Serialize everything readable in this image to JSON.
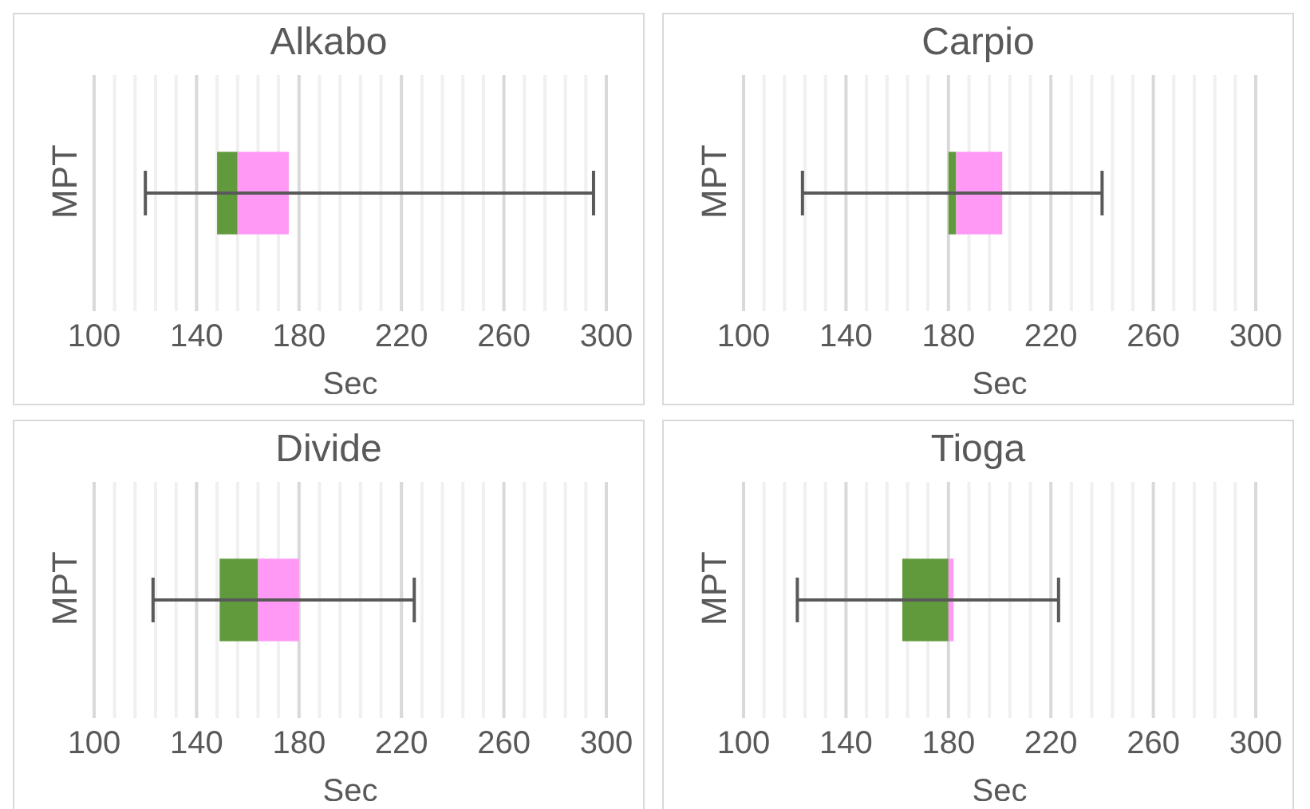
{
  "chart_data": [
    {
      "type": "box",
      "title": "Alkabo",
      "xlabel": "Sec",
      "ylabel": "MPT",
      "orientation": "horizontal",
      "categories": [
        null
      ],
      "colors": [
        [
          "#619a3d",
          "#ff99f5"
        ]
      ],
      "boxes": [
        {
          "low": 120,
          "q1": 148,
          "median": 156,
          "q3": 176,
          "high": 295
        }
      ],
      "xlim": [
        100,
        300
      ],
      "xticks": [
        100,
        {
          "value": 108,
          "label": null
        },
        {
          "value": 116,
          "label": null
        },
        {
          "value": 124,
          "label": null
        },
        {
          "value": 132,
          "label": null
        },
        140,
        {
          "value": 148,
          "label": null
        },
        {
          "value": 156,
          "label": null
        },
        {
          "value": 164,
          "label": null
        },
        {
          "value": 172,
          "label": null
        },
        180,
        {
          "value": 188,
          "label": null
        },
        {
          "value": 196,
          "label": null
        },
        {
          "value": 204,
          "label": null
        },
        {
          "value": 212,
          "label": null
        },
        220,
        {
          "value": 228,
          "label": null
        },
        {
          "value": 236,
          "label": null
        },
        {
          "value": 244,
          "label": null
        },
        {
          "value": 252,
          "label": null
        },
        260,
        {
          "value": 268,
          "label": null
        },
        {
          "value": 276,
          "label": null
        },
        {
          "value": 284,
          "label": null
        },
        {
          "value": 292,
          "label": null
        },
        300
      ],
      "grid": "x"
    },
    {
      "type": "box",
      "title": "Carpio",
      "xlabel": "Sec",
      "ylabel": "MPT",
      "orientation": "horizontal",
      "categories": [
        null
      ],
      "colors": [
        [
          "#619a3d",
          "#ff99f5"
        ]
      ],
      "boxes": [
        {
          "low": 123,
          "q1": 180,
          "median": 183,
          "q3": 201,
          "high": 240
        }
      ],
      "xlim": [
        100,
        300
      ],
      "xticks": [
        100,
        {
          "value": 108,
          "label": null
        },
        {
          "value": 116,
          "label": null
        },
        {
          "value": 124,
          "label": null
        },
        {
          "value": 132,
          "label": null
        },
        140,
        {
          "value": 148,
          "label": null
        },
        {
          "value": 156,
          "label": null
        },
        {
          "value": 164,
          "label": null
        },
        {
          "value": 172,
          "label": null
        },
        180,
        {
          "value": 188,
          "label": null
        },
        {
          "value": 196,
          "label": null
        },
        {
          "value": 204,
          "label": null
        },
        {
          "value": 212,
          "label": null
        },
        220,
        {
          "value": 228,
          "label": null
        },
        {
          "value": 236,
          "label": null
        },
        {
          "value": 244,
          "label": null
        },
        {
          "value": 252,
          "label": null
        },
        260,
        {
          "value": 268,
          "label": null
        },
        {
          "value": 276,
          "label": null
        },
        {
          "value": 284,
          "label": null
        },
        {
          "value": 292,
          "label": null
        },
        300
      ],
      "grid": "x"
    },
    {
      "type": "box",
      "title": "Divide",
      "xlabel": "Sec",
      "ylabel": "MPT",
      "orientation": "horizontal",
      "categories": [
        null
      ],
      "colors": [
        [
          "#619a3d",
          "#ff99f5"
        ]
      ],
      "boxes": [
        {
          "low": 123,
          "q1": 149,
          "median": 164,
          "q3": 180,
          "high": 225
        }
      ],
      "xlim": [
        100,
        300
      ],
      "xticks": [
        100,
        {
          "value": 108,
          "label": null
        },
        {
          "value": 116,
          "label": null
        },
        {
          "value": 124,
          "label": null
        },
        {
          "value": 132,
          "label": null
        },
        140,
        {
          "value": 148,
          "label": null
        },
        {
          "value": 156,
          "label": null
        },
        {
          "value": 164,
          "label": null
        },
        {
          "value": 172,
          "label": null
        },
        180,
        {
          "value": 188,
          "label": null
        },
        {
          "value": 196,
          "label": null
        },
        {
          "value": 204,
          "label": null
        },
        {
          "value": 212,
          "label": null
        },
        220,
        {
          "value": 228,
          "label": null
        },
        {
          "value": 236,
          "label": null
        },
        {
          "value": 244,
          "label": null
        },
        {
          "value": 252,
          "label": null
        },
        260,
        {
          "value": 268,
          "label": null
        },
        {
          "value": 276,
          "label": null
        },
        {
          "value": 284,
          "label": null
        },
        {
          "value": 292,
          "label": null
        },
        300
      ],
      "grid": "x"
    },
    {
      "type": "box",
      "title": "Tioga",
      "xlabel": "Sec",
      "ylabel": "MPT",
      "orientation": "horizontal",
      "categories": [
        null
      ],
      "colors": [
        [
          "#619a3d",
          "#ff99f5"
        ]
      ],
      "boxes": [
        {
          "low": 121,
          "q1": 162,
          "median": 180,
          "q3": 182,
          "high": 223
        }
      ],
      "xlim": [
        100,
        300
      ],
      "xticks": [
        100,
        {
          "value": 108,
          "label": null
        },
        {
          "value": 116,
          "label": null
        },
        {
          "value": 124,
          "label": null
        },
        {
          "value": 132,
          "label": null
        },
        140,
        {
          "value": 148,
          "label": null
        },
        {
          "value": 156,
          "label": null
        },
        {
          "value": 164,
          "label": null
        },
        {
          "value": 172,
          "label": null
        },
        180,
        {
          "value": 188,
          "label": null
        },
        {
          "value": 196,
          "label": null
        },
        {
          "value": 204,
          "label": null
        },
        {
          "value": 212,
          "label": null
        },
        220,
        {
          "value": 228,
          "label": null
        },
        {
          "value": 236,
          "label": null
        },
        {
          "value": 244,
          "label": null
        },
        {
          "value": 252,
          "label": null
        },
        260,
        {
          "value": 268,
          "label": null
        },
        {
          "value": 276,
          "label": null
        },
        {
          "value": 284,
          "label": null
        },
        {
          "value": 292,
          "label": null
        },
        300
      ],
      "grid": "x"
    }
  ]
}
